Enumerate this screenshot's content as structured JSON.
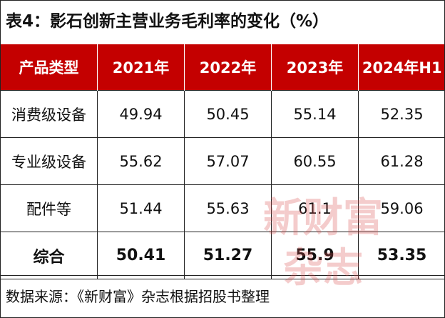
{
  "title": "表4：影石创新主营业务毛利率的变化（%）",
  "table": {
    "headers": [
      "产品类型",
      "2021年",
      "2022年",
      "2023年",
      "2024年H1"
    ],
    "rows": [
      [
        "消费级设备",
        "49.94",
        "50.45",
        "55.14",
        "52.35"
      ],
      [
        "专业级设备",
        "55.62",
        "57.07",
        "60.55",
        "61.28"
      ],
      [
        "配件等",
        "51.44",
        "55.63",
        "61.1",
        "59.06"
      ],
      [
        "综合",
        "50.41",
        "51.27",
        "55.9",
        "53.35"
      ]
    ]
  },
  "source": "数据来源：《新财富》杂志根据招股书整理",
  "watermark": {
    "line1": "新财富",
    "line2": "杂志",
    "color": "#d84a4a"
  },
  "colors": {
    "header_bg": "#c40000",
    "header_text": "#ffffff",
    "border": "#222222"
  }
}
